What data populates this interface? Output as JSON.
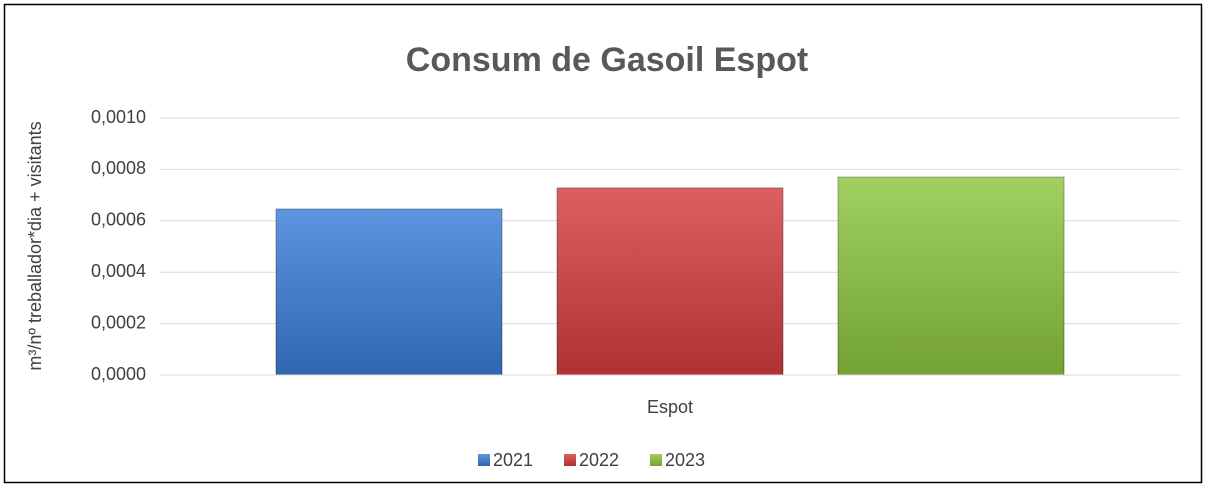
{
  "chart_data": {
    "type": "bar",
    "title": "Consum de Gasoil Espot",
    "y_label": "m³/nº treballador*dia + visitants",
    "categories": [
      "Espot"
    ],
    "series": [
      {
        "name": "2021",
        "color": "#3b7dd8",
        "values": [
          0.000646
        ]
      },
      {
        "name": "2022",
        "color": "#d63c3c",
        "values": [
          0.000728
        ]
      },
      {
        "name": "2023",
        "color": "#8cc63e",
        "values": [
          0.00077
        ]
      }
    ],
    "ylim": [
      0,
      0.001
    ],
    "yticks": [
      {
        "value": 0,
        "label": "0,0000"
      },
      {
        "value": 0.0002,
        "label": "0,0002"
      },
      {
        "value": 0.0004,
        "label": "0,0004"
      },
      {
        "value": 0.0006,
        "label": "0,0006"
      },
      {
        "value": 0.0008,
        "label": "0,0008"
      },
      {
        "value": 0.001,
        "label": "0,0010"
      }
    ],
    "grid": true,
    "legend": "bottom"
  }
}
